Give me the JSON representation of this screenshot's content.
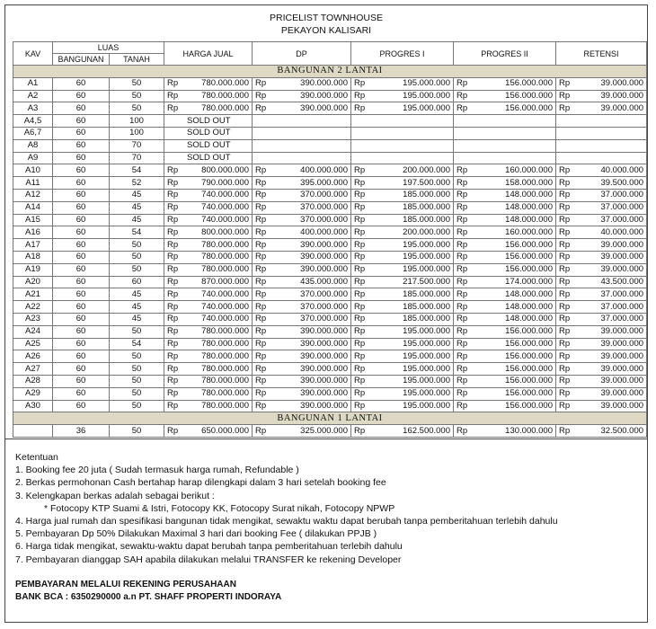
{
  "header": {
    "title": "PRICELIST TOWNHOUSE",
    "subtitle": "PEKAYON KALISARI"
  },
  "table": {
    "columns": {
      "kav": "KAV",
      "luas": "LUAS",
      "bangunan": "BANGUNAN",
      "tanah": "TANAH",
      "harga_jual": "HARGA JUAL",
      "dp": "DP",
      "progres_1": "PROGRES I",
      "progres_2": "PROGRES II",
      "retensi": "RETENSI"
    },
    "currency": "Rp",
    "sections": [
      {
        "title": "BANGUNAN 2 LANTAI",
        "rows": [
          {
            "kav": "A1",
            "bangunan": "60",
            "tanah": "50",
            "harga_jual": "780.000.000",
            "dp": "390.000.000",
            "progres_1": "195.000.000",
            "progres_2": "156.000.000",
            "retensi": "39.000.000"
          },
          {
            "kav": "A2",
            "bangunan": "60",
            "tanah": "50",
            "harga_jual": "780.000.000",
            "dp": "390.000.000",
            "progres_1": "195.000.000",
            "progres_2": "156.000.000",
            "retensi": "39.000.000"
          },
          {
            "kav": "A3",
            "bangunan": "60",
            "tanah": "50",
            "harga_jual": "780.000.000",
            "dp": "390.000.000",
            "progres_1": "195.000.000",
            "progres_2": "156.000.000",
            "retensi": "39.000.000"
          },
          {
            "kav": "A4,5",
            "bangunan": "60",
            "tanah": "100",
            "status": "SOLD OUT"
          },
          {
            "kav": "A6,7",
            "bangunan": "60",
            "tanah": "100",
            "status": "SOLD OUT"
          },
          {
            "kav": "A8",
            "bangunan": "60",
            "tanah": "70",
            "status": "SOLD OUT"
          },
          {
            "kav": "A9",
            "bangunan": "60",
            "tanah": "70",
            "status": "SOLD OUT"
          },
          {
            "kav": "A10",
            "bangunan": "60",
            "tanah": "54",
            "harga_jual": "800.000.000",
            "dp": "400.000.000",
            "progres_1": "200.000.000",
            "progres_2": "160.000.000",
            "retensi": "40.000.000"
          },
          {
            "kav": "A11",
            "bangunan": "60",
            "tanah": "52",
            "harga_jual": "790.000.000",
            "dp": "395.000.000",
            "progres_1": "197.500.000",
            "progres_2": "158.000.000",
            "retensi": "39.500.000"
          },
          {
            "kav": "A12",
            "bangunan": "60",
            "tanah": "45",
            "harga_jual": "740.000.000",
            "dp": "370.000.000",
            "progres_1": "185.000.000",
            "progres_2": "148.000.000",
            "retensi": "37.000.000"
          },
          {
            "kav": "A14",
            "bangunan": "60",
            "tanah": "45",
            "harga_jual": "740.000.000",
            "dp": "370.000.000",
            "progres_1": "185.000.000",
            "progres_2": "148.000.000",
            "retensi": "37.000.000"
          },
          {
            "kav": "A15",
            "bangunan": "60",
            "tanah": "45",
            "harga_jual": "740.000.000",
            "dp": "370.000.000",
            "progres_1": "185.000.000",
            "progres_2": "148.000.000",
            "retensi": "37.000.000"
          },
          {
            "kav": "A16",
            "bangunan": "60",
            "tanah": "54",
            "harga_jual": "800.000.000",
            "dp": "400.000.000",
            "progres_1": "200.000.000",
            "progres_2": "160.000.000",
            "retensi": "40.000.000"
          },
          {
            "kav": "A17",
            "bangunan": "60",
            "tanah": "50",
            "harga_jual": "780.000.000",
            "dp": "390.000.000",
            "progres_1": "195.000.000",
            "progres_2": "156.000.000",
            "retensi": "39.000.000"
          },
          {
            "kav": "A18",
            "bangunan": "60",
            "tanah": "50",
            "harga_jual": "780.000.000",
            "dp": "390.000.000",
            "progres_1": "195.000.000",
            "progres_2": "156.000.000",
            "retensi": "39.000.000"
          },
          {
            "kav": "A19",
            "bangunan": "60",
            "tanah": "50",
            "harga_jual": "780.000.000",
            "dp": "390.000.000",
            "progres_1": "195.000.000",
            "progres_2": "156.000.000",
            "retensi": "39.000.000"
          },
          {
            "kav": "A20",
            "bangunan": "60",
            "tanah": "60",
            "harga_jual": "870.000.000",
            "dp": "435.000.000",
            "progres_1": "217.500.000",
            "progres_2": "174.000.000",
            "retensi": "43.500.000"
          },
          {
            "kav": "A21",
            "bangunan": "60",
            "tanah": "45",
            "harga_jual": "740.000.000",
            "dp": "370.000.000",
            "progres_1": "185.000.000",
            "progres_2": "148.000.000",
            "retensi": "37.000.000"
          },
          {
            "kav": "A22",
            "bangunan": "60",
            "tanah": "45",
            "harga_jual": "740.000.000",
            "dp": "370.000.000",
            "progres_1": "185.000.000",
            "progres_2": "148.000.000",
            "retensi": "37.000.000"
          },
          {
            "kav": "A23",
            "bangunan": "60",
            "tanah": "45",
            "harga_jual": "740.000.000",
            "dp": "370.000.000",
            "progres_1": "185.000.000",
            "progres_2": "148.000.000",
            "retensi": "37.000.000"
          },
          {
            "kav": "A24",
            "bangunan": "60",
            "tanah": "50",
            "harga_jual": "780.000.000",
            "dp": "390.000.000",
            "progres_1": "195.000.000",
            "progres_2": "156.000.000",
            "retensi": "39.000.000"
          },
          {
            "kav": "A25",
            "bangunan": "60",
            "tanah": "54",
            "harga_jual": "780.000.000",
            "dp": "390.000.000",
            "progres_1": "195.000.000",
            "progres_2": "156.000.000",
            "retensi": "39.000.000"
          },
          {
            "kav": "A26",
            "bangunan": "60",
            "tanah": "50",
            "harga_jual": "780.000.000",
            "dp": "390.000.000",
            "progres_1": "195.000.000",
            "progres_2": "156.000.000",
            "retensi": "39.000.000"
          },
          {
            "kav": "A27",
            "bangunan": "60",
            "tanah": "50",
            "harga_jual": "780.000.000",
            "dp": "390.000.000",
            "progres_1": "195.000.000",
            "progres_2": "156.000.000",
            "retensi": "39.000.000"
          },
          {
            "kav": "A28",
            "bangunan": "60",
            "tanah": "50",
            "harga_jual": "780.000.000",
            "dp": "390.000.000",
            "progres_1": "195.000.000",
            "progres_2": "156.000.000",
            "retensi": "39.000.000"
          },
          {
            "kav": "A29",
            "bangunan": "60",
            "tanah": "50",
            "harga_jual": "780.000.000",
            "dp": "390.000.000",
            "progres_1": "195.000.000",
            "progres_2": "156.000.000",
            "retensi": "39.000.000"
          },
          {
            "kav": "A30",
            "bangunan": "60",
            "tanah": "50",
            "harga_jual": "780.000.000",
            "dp": "390.000.000",
            "progres_1": "195.000.000",
            "progres_2": "156.000.000",
            "retensi": "39.000.000"
          }
        ]
      },
      {
        "title": "BANGUNAN 1 LANTAI",
        "rows": [
          {
            "bangunan": "36",
            "tanah": "50",
            "harga_jual": "650.000.000",
            "dp": "325.000.000",
            "progres_1": "162.500.000",
            "progres_2": "130.000.000",
            "retensi": "32.500.000"
          }
        ]
      }
    ]
  },
  "notes": {
    "title": "Ketentuan",
    "items": [
      "1. Booking fee 20 juta ( Sudah termasuk harga rumah, Refundable )",
      "2. Berkas permohonan Cash bertahap harap dilengkapi dalam 3 hari setelah booking fee",
      "3. Kelengkapan berkas adalah sebagai berikut :",
      "* Fotocopy KTP Suami & Istri, Fotocopy KK, Fotocopy Surat nikah, Fotocopy NPWP",
      "4. Harga jual rumah dan spesifikasi bangunan tidak mengikat, sewaktu waktu dapat berubah tanpa pemberitahuan terlebih dahulu",
      "5. Pembayaran Dp 50% Dilakukan Maximal 3 hari dari booking Fee ( dilakukan PPJB )",
      "6. Harga tidak mengikat, sewaktu-waktu dapat berubah tanpa pemberitahuan terlebih dahulu",
      "7. Pembayaran dianggap SAH apabila dilakukan melalui TRANSFER ke rekening Developer"
    ],
    "payment": [
      "PEMBAYARAN MELALUI REKENING PERUSAHAAN",
      "BANK BCA : 6350290000 a.n PT. SHAFF PROPERTI INDORAYA"
    ]
  }
}
